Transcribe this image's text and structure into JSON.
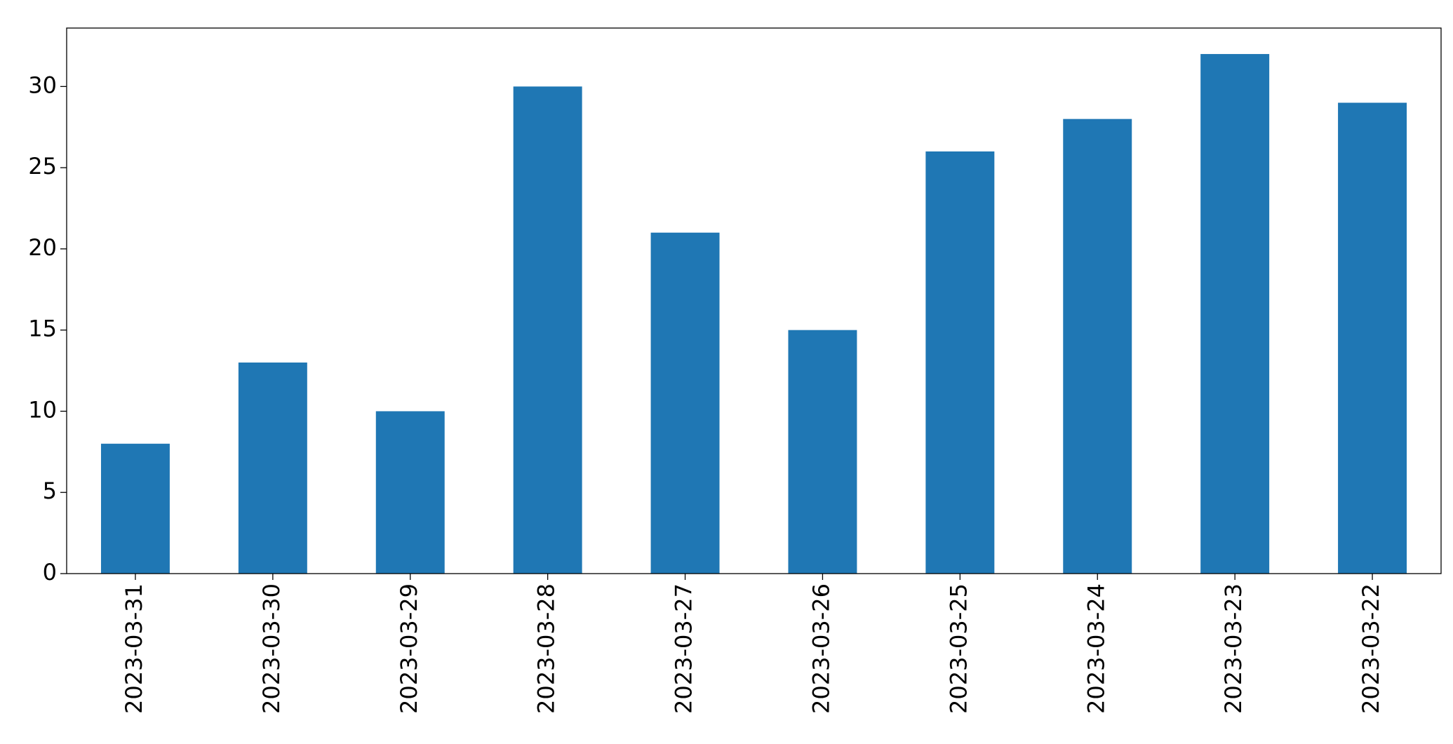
{
  "chart_data": {
    "type": "bar",
    "categories": [
      "2023-03-31",
      "2023-03-30",
      "2023-03-29",
      "2023-03-28",
      "2023-03-27",
      "2023-03-26",
      "2023-03-25",
      "2023-03-24",
      "2023-03-23",
      "2023-03-22"
    ],
    "values": [
      8,
      13,
      10,
      30,
      21,
      15,
      26,
      28,
      32,
      29
    ],
    "color": "#1f77b4",
    "ylim": [
      0,
      33.6
    ],
    "yticks": [
      0,
      5,
      10,
      15,
      20,
      25,
      30
    ],
    "grid": false
  }
}
